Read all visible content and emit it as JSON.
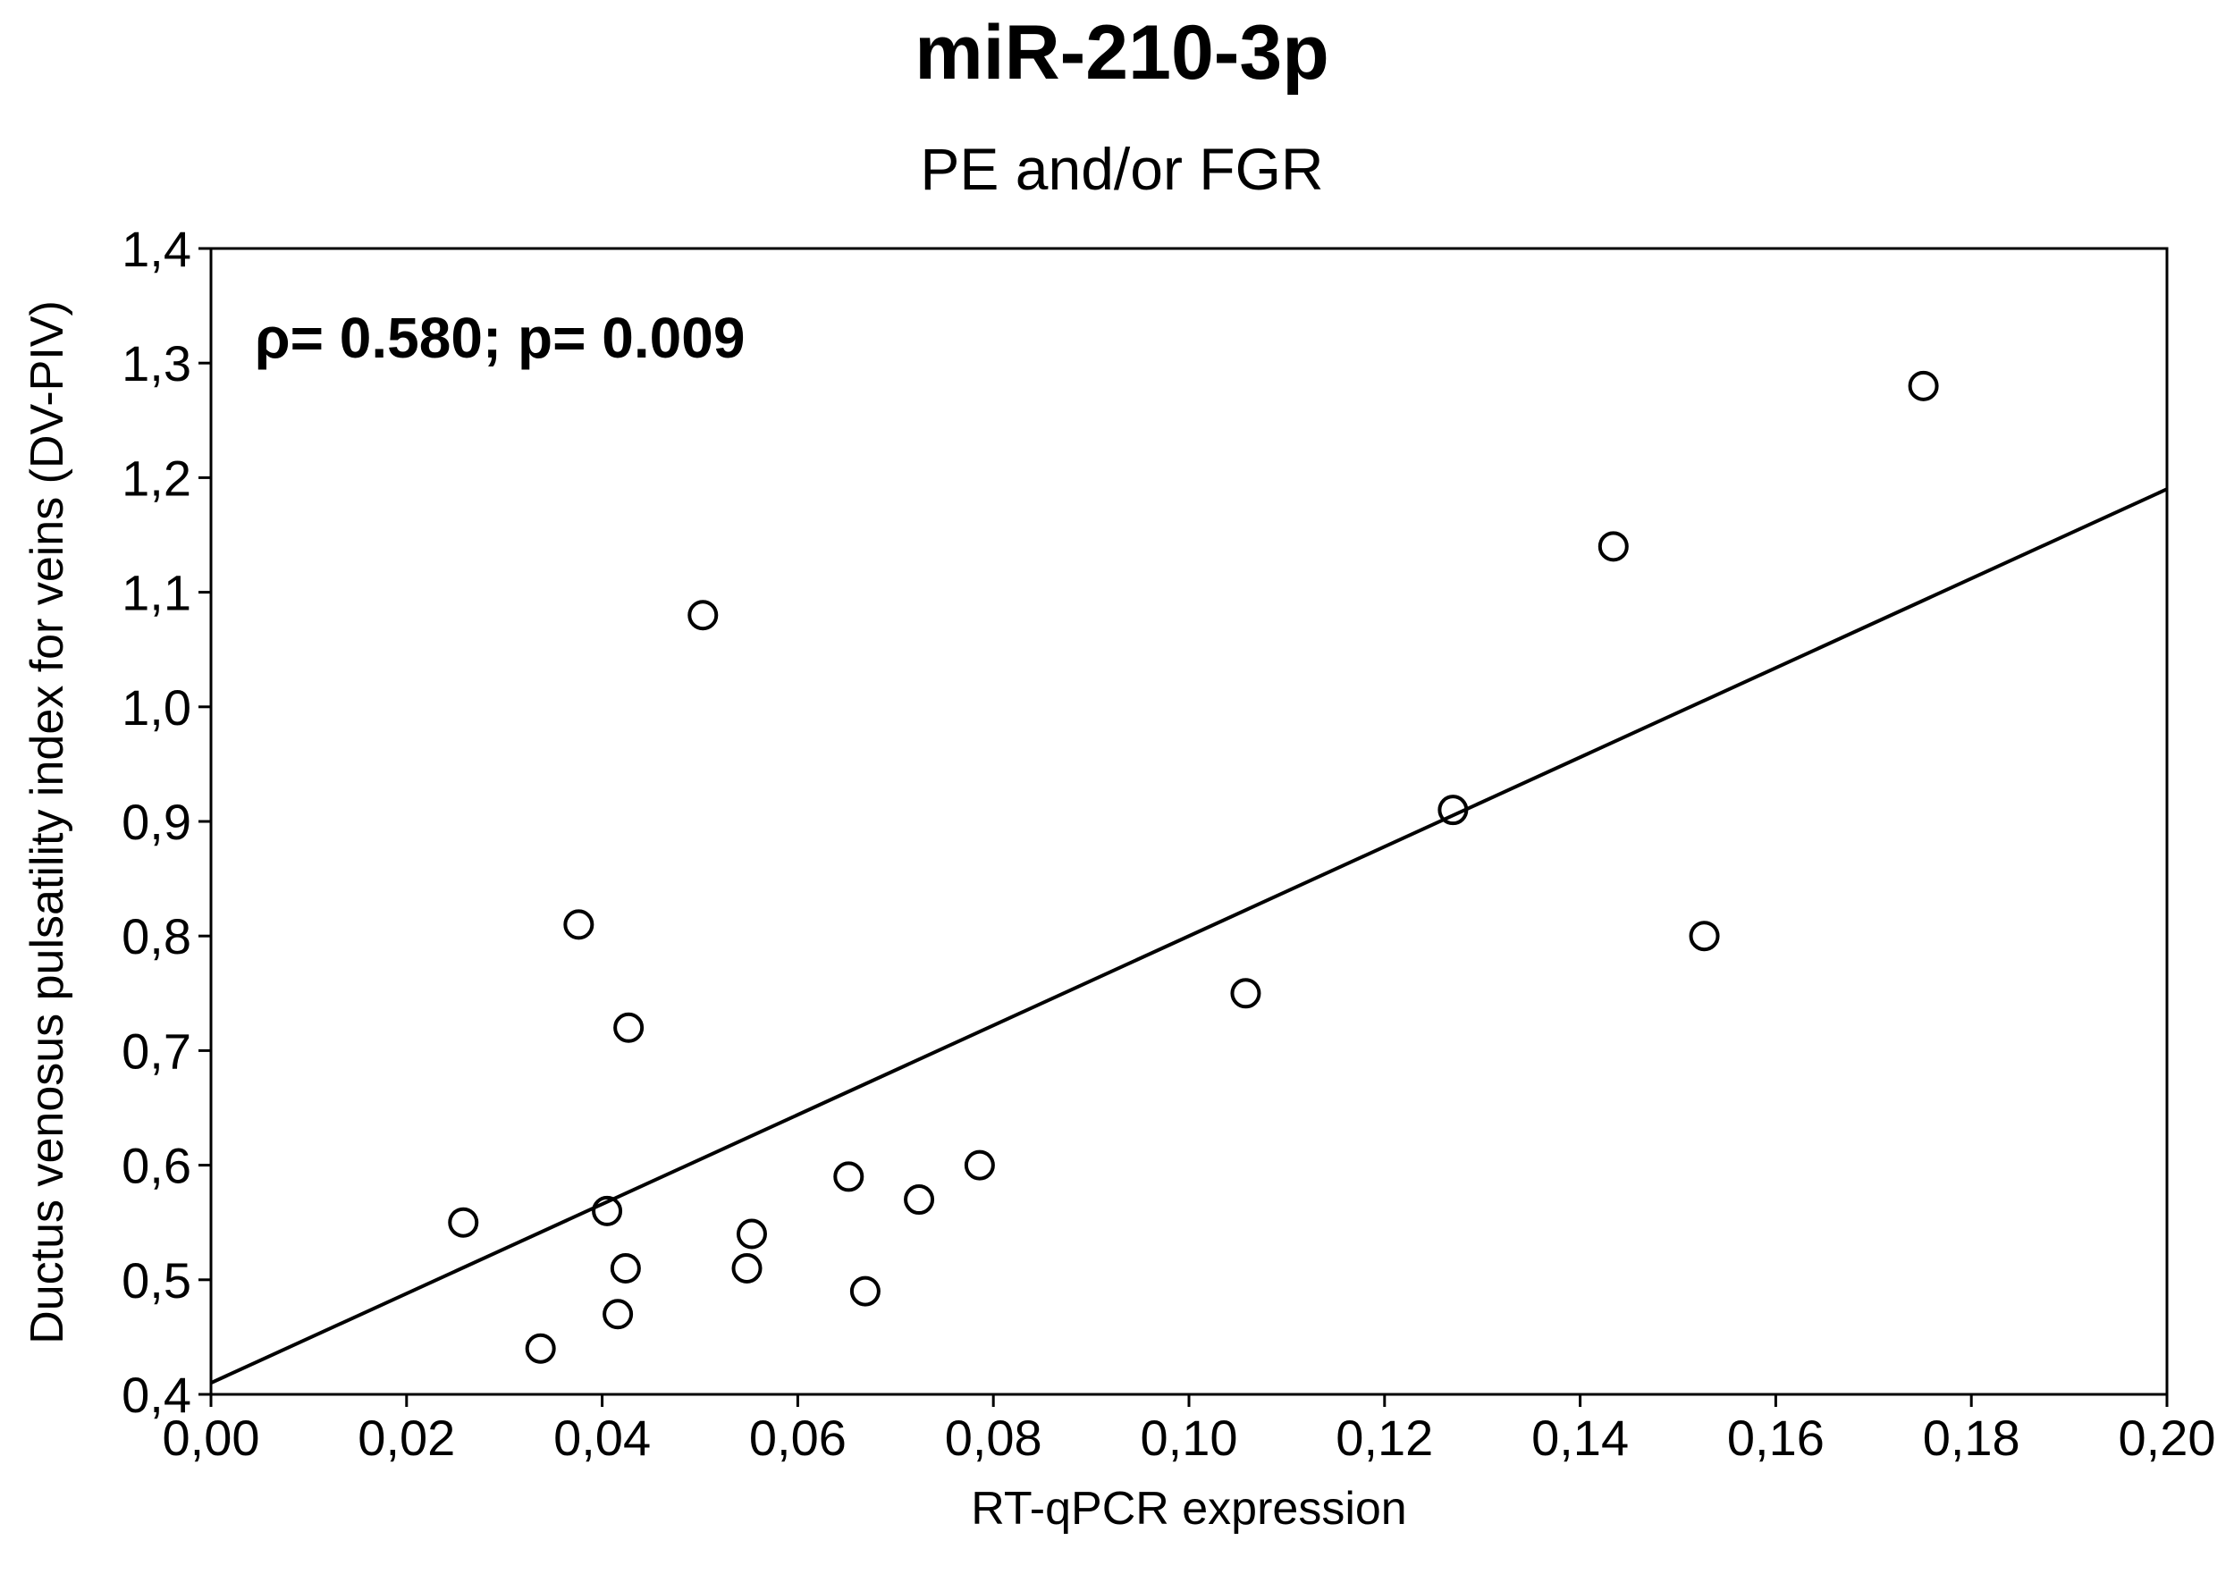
{
  "chart_data": {
    "type": "scatter",
    "title": "miR-210-3p",
    "subtitle": "PE and/or FGR",
    "xlabel": "RT-qPCR expression",
    "ylabel": "Ductus venosus pulsatility index for veins (DV-PIV)",
    "xlim": [
      0.0,
      0.2
    ],
    "ylim": [
      0.4,
      1.4
    ],
    "x_ticks": [
      "0,00",
      "0,02",
      "0,04",
      "0,06",
      "0,08",
      "0,10",
      "0,12",
      "0,14",
      "0,16",
      "0,18",
      "0,20"
    ],
    "y_ticks": [
      "0,4",
      "0,5",
      "0,6",
      "0,7",
      "0,8",
      "0,9",
      "1,0",
      "1,1",
      "1,2",
      "1,3",
      "1,4"
    ],
    "annotation": "ρ= 0.580; p= 0.009",
    "grid": false,
    "points": [
      {
        "x": 0.0258,
        "y": 0.55
      },
      {
        "x": 0.0337,
        "y": 0.44
      },
      {
        "x": 0.0376,
        "y": 0.81
      },
      {
        "x": 0.0405,
        "y": 0.56
      },
      {
        "x": 0.0416,
        "y": 0.47
      },
      {
        "x": 0.0424,
        "y": 0.51
      },
      {
        "x": 0.0427,
        "y": 0.72
      },
      {
        "x": 0.0503,
        "y": 1.08
      },
      {
        "x": 0.0548,
        "y": 0.51
      },
      {
        "x": 0.0553,
        "y": 0.54
      },
      {
        "x": 0.0652,
        "y": 0.59
      },
      {
        "x": 0.0669,
        "y": 0.49
      },
      {
        "x": 0.0724,
        "y": 0.57
      },
      {
        "x": 0.0786,
        "y": 0.6
      },
      {
        "x": 0.1058,
        "y": 0.75
      },
      {
        "x": 0.127,
        "y": 0.91
      },
      {
        "x": 0.1434,
        "y": 1.14
      },
      {
        "x": 0.1527,
        "y": 0.8
      },
      {
        "x": 0.1751,
        "y": 1.28
      }
    ],
    "fit_line": {
      "x": [
        0.0,
        0.2
      ],
      "y": [
        0.41,
        1.19
      ]
    },
    "colors": {
      "marker": "#000000",
      "line": "#000000",
      "background": "#ffffff"
    }
  }
}
